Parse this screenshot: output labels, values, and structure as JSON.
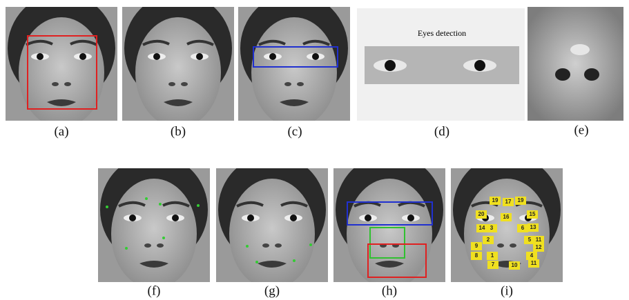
{
  "panels": [
    {
      "label": "(a)"
    },
    {
      "label": "(b)"
    },
    {
      "label": "(c)"
    },
    {
      "label": "(d)"
    },
    {
      "label": "(e)"
    },
    {
      "label": "(f)"
    },
    {
      "label": "(g)"
    },
    {
      "label": "(h)"
    },
    {
      "label": "(i)"
    }
  ],
  "eyes_detection_title": "Eyes detection",
  "landmark_labels": [
    "19",
    "17",
    "19",
    "20",
    "16",
    "15",
    "14",
    "3",
    "6",
    "13",
    "2",
    "5",
    "11",
    "9",
    "12",
    "8",
    "1",
    "4",
    "7",
    "10",
    "11"
  ]
}
